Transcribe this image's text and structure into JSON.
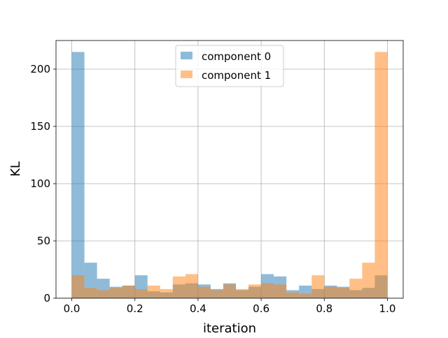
{
  "chart_data": {
    "type": "bar",
    "title": "",
    "xlabel": "iteration",
    "ylabel": "KL",
    "xlim": [
      -0.05,
      1.05
    ],
    "ylim": [
      0,
      225
    ],
    "xticks": [
      0.0,
      0.2,
      0.4,
      0.6,
      0.8,
      1.0
    ],
    "xtick_labels": [
      "0.0",
      "0.2",
      "0.4",
      "0.6",
      "0.8",
      "1.0"
    ],
    "yticks": [
      0,
      50,
      100,
      150,
      200
    ],
    "ytick_labels": [
      "0",
      "50",
      "100",
      "150",
      "200"
    ],
    "grid": true,
    "legend_position": "top-center",
    "bin_edges": [
      0.0,
      0.04,
      0.08,
      0.12,
      0.16,
      0.2,
      0.24,
      0.28,
      0.32,
      0.36,
      0.4,
      0.44,
      0.48,
      0.52,
      0.56,
      0.6,
      0.64,
      0.68,
      0.72,
      0.76,
      0.8,
      0.84,
      0.88,
      0.92,
      0.96,
      1.0
    ],
    "series": [
      {
        "name": "component 0",
        "color": "#1f77b4",
        "values": [
          215,
          31,
          17,
          10,
          11,
          20,
          6,
          5,
          12,
          13,
          12,
          8,
          13,
          7,
          10,
          21,
          19,
          7,
          11,
          8,
          11,
          10,
          7,
          9,
          20
        ]
      },
      {
        "name": "component 1",
        "color": "#ff7f0e",
        "values": [
          20,
          9,
          7,
          9,
          11,
          8,
          11,
          8,
          19,
          21,
          10,
          7,
          12,
          8,
          12,
          13,
          12,
          5,
          4,
          20,
          10,
          9,
          17,
          31,
          215
        ]
      }
    ]
  }
}
